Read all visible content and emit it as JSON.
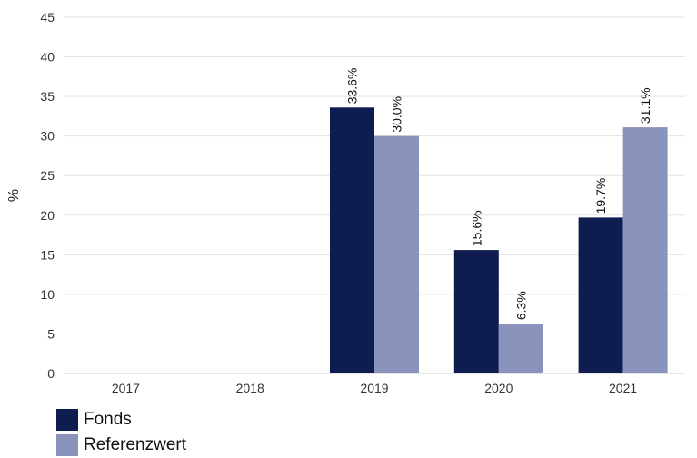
{
  "chart_data": {
    "type": "bar",
    "categories": [
      "2017",
      "2018",
      "2019",
      "2020",
      "2021"
    ],
    "series": [
      {
        "name": "Fonds",
        "values": [
          null,
          null,
          33.6,
          15.6,
          19.7
        ],
        "labels": [
          "",
          "",
          "33.6%",
          "15.6%",
          "19.7%"
        ],
        "color": "#0e1c4f"
      },
      {
        "name": "Referenzwert",
        "values": [
          null,
          null,
          30.0,
          6.3,
          31.1
        ],
        "labels": [
          "",
          "",
          "30.0%",
          "6.3%",
          "31.1%"
        ],
        "color": "#8a93bb"
      }
    ],
    "ylabel": "%",
    "xlabel": "",
    "ylim": [
      0,
      45
    ],
    "yticks": [
      "0",
      "5",
      "10",
      "15",
      "20",
      "25",
      "30",
      "35",
      "40",
      "45"
    ],
    "grid": true,
    "legend": "bottom-left"
  }
}
